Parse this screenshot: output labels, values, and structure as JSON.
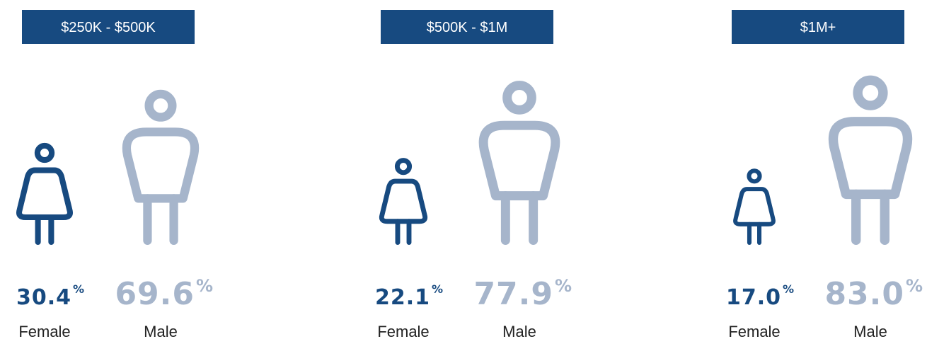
{
  "chart_data": {
    "type": "pictograph",
    "unit": "%",
    "groups": [
      {
        "title": "$250K - $500K",
        "series": [
          {
            "name": "Female",
            "color": "#174a80",
            "value": 30.4,
            "value_label": "30.4"
          },
          {
            "name": "Male",
            "color": "#a6b5cb",
            "value": 69.6,
            "value_label": "69.6"
          }
        ]
      },
      {
        "title": "$500K - $1M",
        "series": [
          {
            "name": "Female",
            "color": "#174a80",
            "value": 22.1,
            "value_label": "22.1"
          },
          {
            "name": "Male",
            "color": "#a6b5cb",
            "value": 77.9,
            "value_label": "77.9"
          }
        ]
      },
      {
        "title": "$1M+",
        "series": [
          {
            "name": "Female",
            "color": "#174a80",
            "value": 17.0,
            "value_label": "17.0"
          },
          {
            "name": "Male",
            "color": "#a6b5cb",
            "value": 83.0,
            "value_label": "83.0"
          }
        ]
      }
    ]
  }
}
